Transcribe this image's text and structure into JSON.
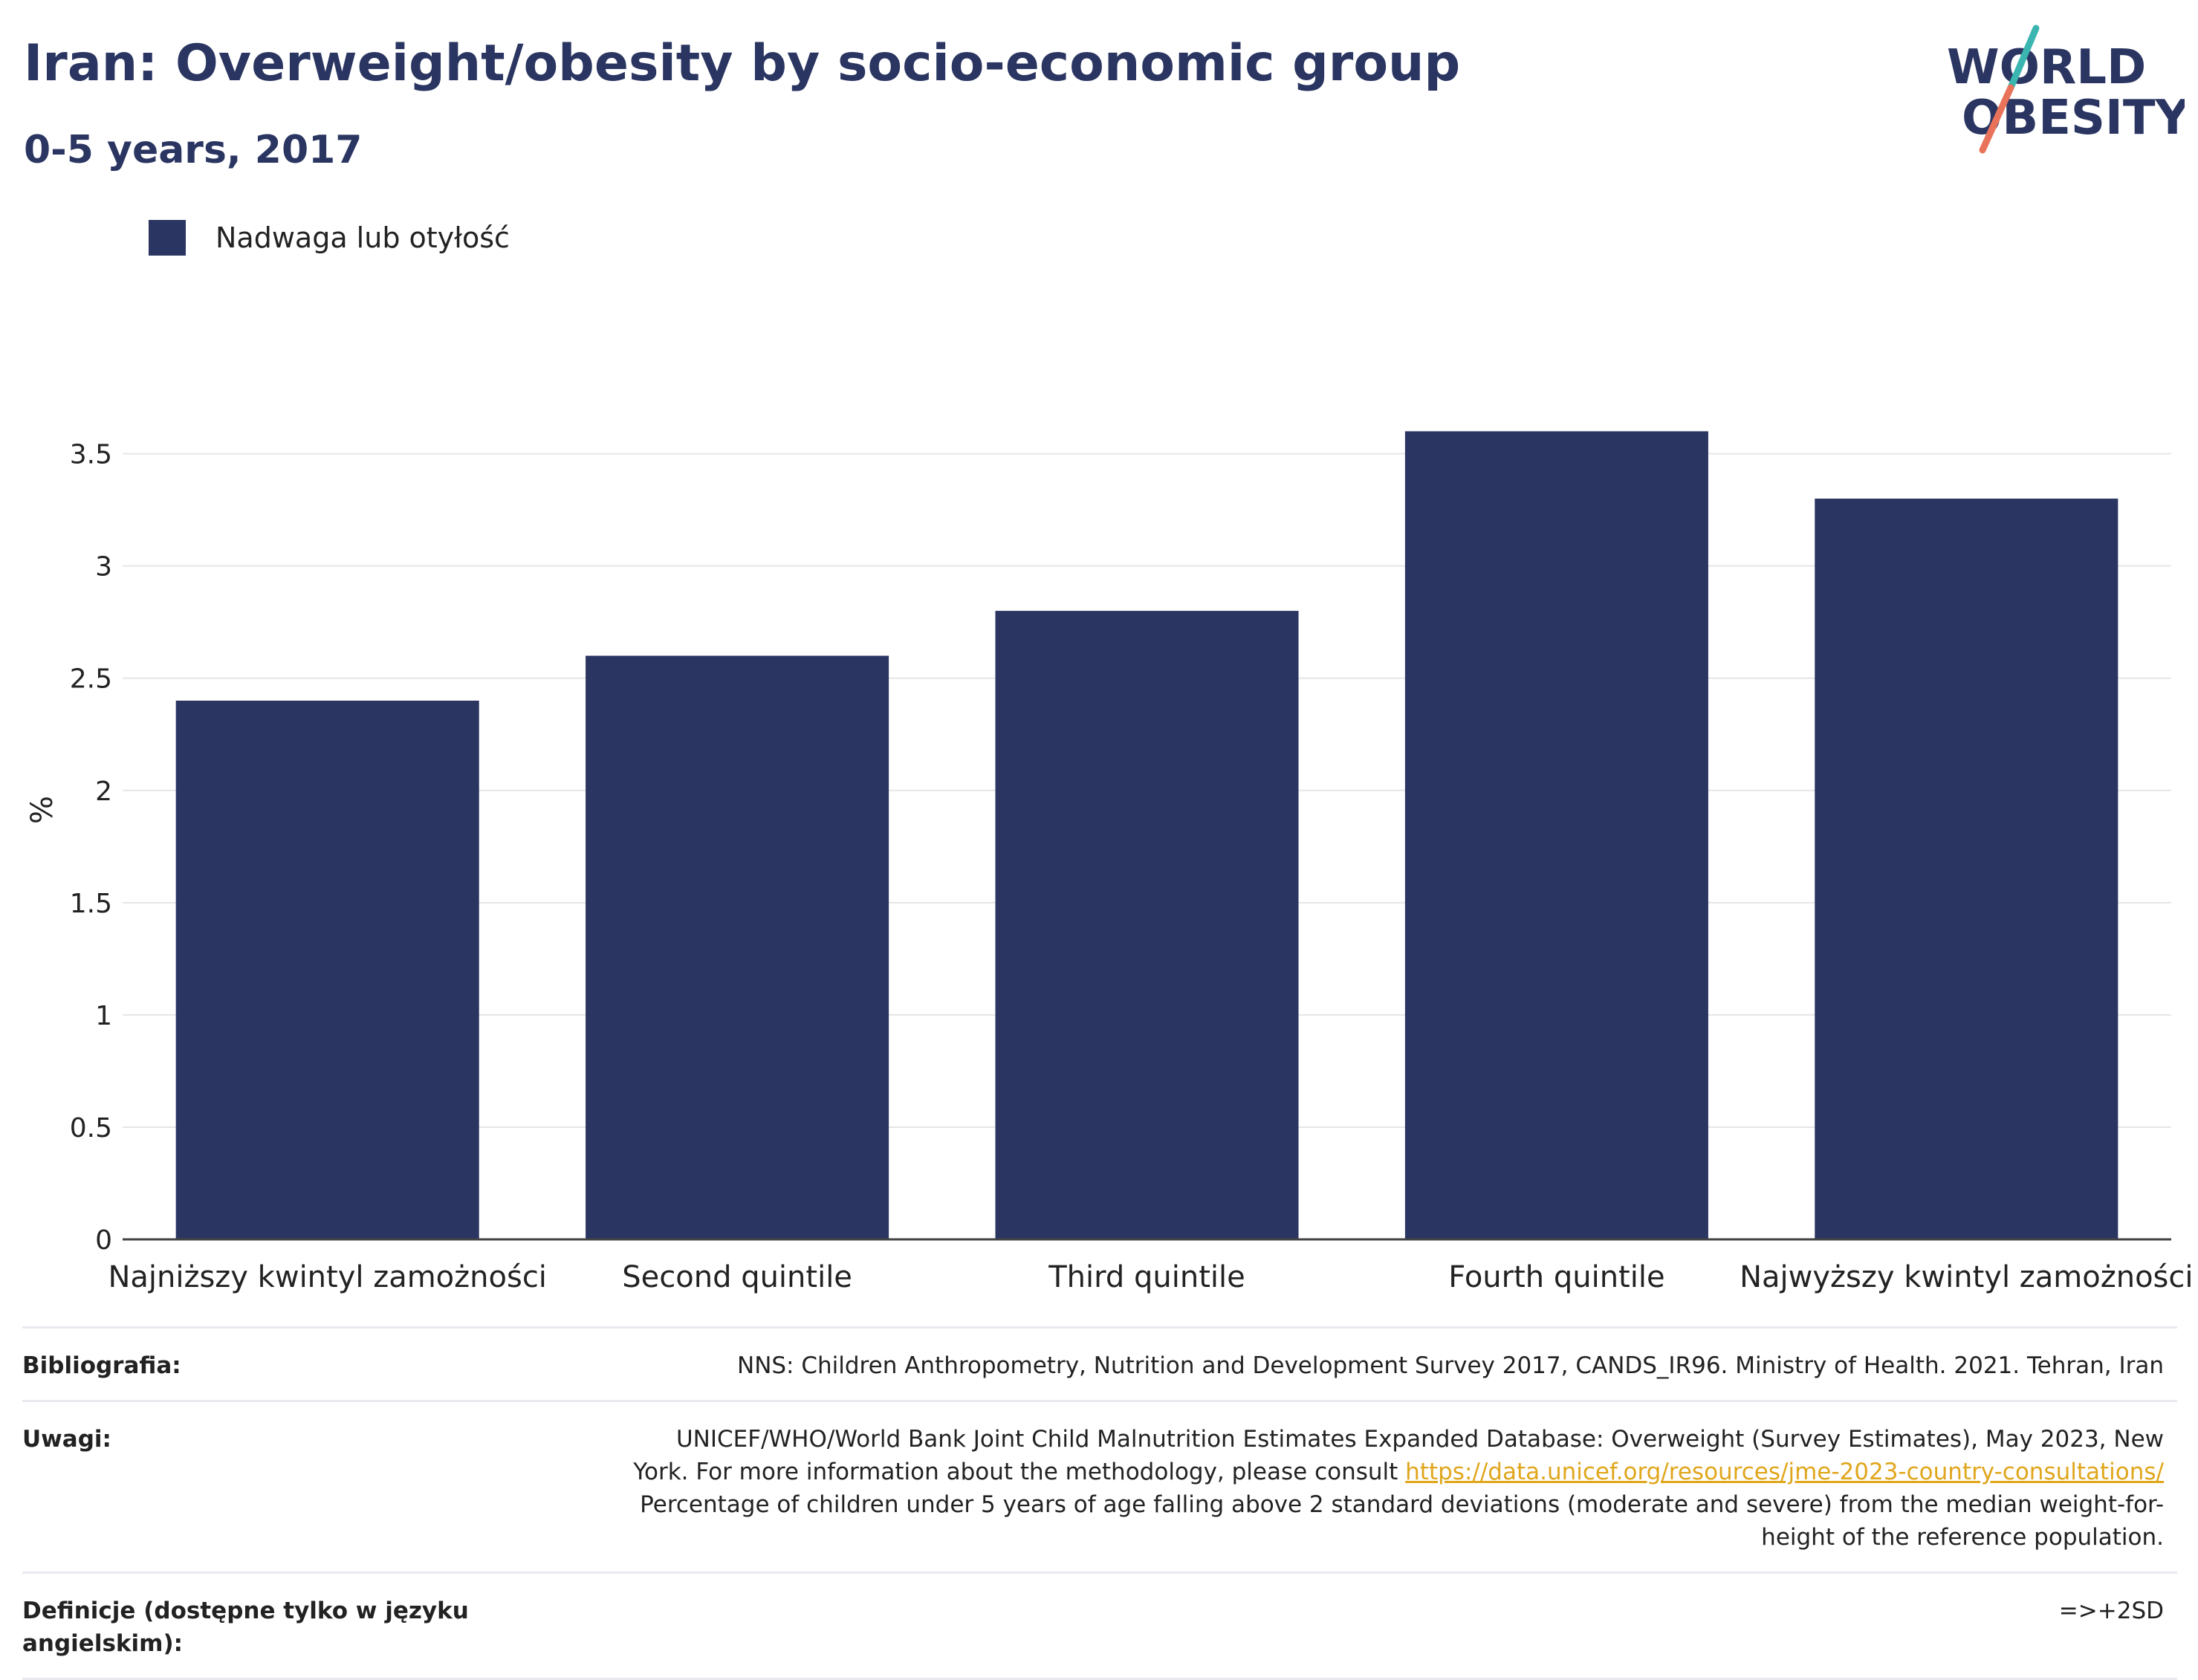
{
  "header": {
    "title": "Iran: Overweight/obesity by socio-economic group",
    "subtitle": "0-5 years, 2017"
  },
  "logo": {
    "line1": "WORLD",
    "line2": "OBESITY",
    "colors": {
      "text": "#2a3561",
      "slash_top": "#3ab5b0",
      "slash_bottom": "#e8735a"
    }
  },
  "chart_data": {
    "type": "bar",
    "categories": [
      "Najniższy kwintyl zamożności",
      "Second quintile",
      "Third quintile",
      "Fourth quintile",
      "Najwyższy kwintyl zamożności"
    ],
    "series": [
      {
        "name": "Nadwaga lub otyłość",
        "values": [
          2.4,
          2.6,
          2.8,
          3.6,
          3.3
        ],
        "color": "#2a3561"
      }
    ],
    "ylabel": "%",
    "xlabel": "",
    "ylim": [
      0,
      3.8
    ],
    "yticks": [
      0,
      0.5,
      1,
      1.5,
      2,
      2.5,
      3,
      3.5
    ],
    "ytick_labels": [
      "0",
      "0.5",
      "1",
      "1.5",
      "2",
      "2.5",
      "3",
      "3.5"
    ],
    "grid": true,
    "legend": "top-left"
  },
  "meta": {
    "bibliography_label": "Bibliografia:",
    "bibliography_value": "NNS: Children Anthropometry, Nutrition and Development Survey 2017, CANDS_IR96. Ministry of Health. 2021. Tehran, Iran",
    "notes_label": "Uwagi:",
    "notes_line1": "UNICEF/WHO/World Bank Joint Child Malnutrition Estimates Expanded Database: Overweight (Survey Estimates), May 2023, New",
    "notes_line2": "York. For more information about the methodology, please consult",
    "notes_link": "https://data.unicef.org/resources/jme-2023-country-consultations/",
    "notes_line3": "Percentage of children under 5 years of age falling above 2 standard deviations (moderate and severe) from the median weight-for-",
    "notes_line4": "height of the reference population.",
    "definitions_label": "Definicje (dostępne tylko w języku angielskim):",
    "definitions_value": "=>+2SD"
  }
}
